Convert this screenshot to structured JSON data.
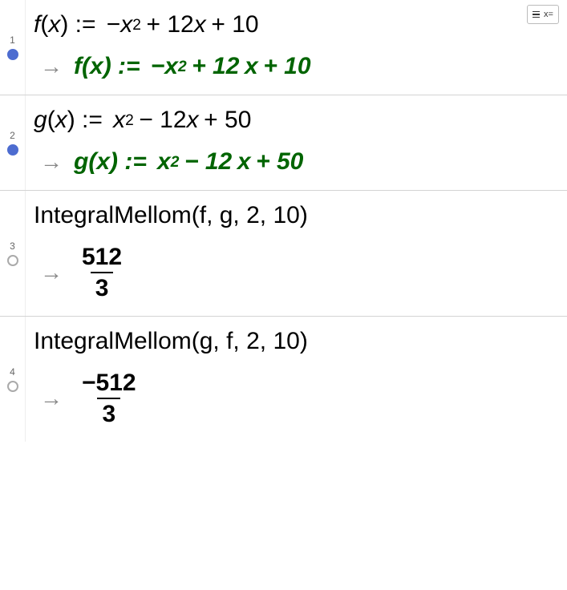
{
  "toolbar": {
    "keyboard_toggle_label": "x="
  },
  "rows": [
    {
      "index": "1",
      "marker": "filled",
      "input": {
        "func": "f",
        "var": "x",
        "op": ":=",
        "a": "−",
        "b": "x",
        "b_sup": "2",
        "c": "+ 12",
        "d": "x",
        "e": "+ 10"
      },
      "output": {
        "color": "#006400",
        "func": "f",
        "var": "x",
        "op": ":=",
        "a": "−",
        "b": "x",
        "b_sup": "2",
        "c": "+ 12",
        "d": "x",
        "e": "+ 10"
      }
    },
    {
      "index": "2",
      "marker": "filled",
      "input": {
        "func": "g",
        "var": "x",
        "op": ":=",
        "a": "",
        "b": "x",
        "b_sup": "2",
        "c": "− 12",
        "d": "x",
        "e": "+ 50"
      },
      "output": {
        "color": "#006400",
        "func": "g",
        "var": "x",
        "op": ":=",
        "a": "",
        "b": "x",
        "b_sup": "2",
        "c": "− 12",
        "d": "x",
        "e": "+ 50"
      }
    },
    {
      "index": "3",
      "marker": "empty",
      "call": {
        "fn": "IntegralMellom",
        "args": "(f, g, 2, 10)"
      },
      "frac": {
        "num": "512",
        "den": "3",
        "color": "#000000"
      }
    },
    {
      "index": "4",
      "marker": "empty",
      "call": {
        "fn": "IntegralMellom",
        "args": "(g, f, 2, 10)"
      },
      "frac": {
        "num": "−512",
        "den": "3",
        "color": "#000000"
      }
    }
  ],
  "style": {
    "input_color": "#000000",
    "output_color": "#006400",
    "input_fontsize": 30,
    "output_fontsize": 30,
    "arrow_color": "#888888",
    "border_color": "#d4d4d4",
    "marker_filled": "#4d6cd0",
    "marker_empty_border": "#aaaaaa",
    "background": "#ffffff"
  }
}
